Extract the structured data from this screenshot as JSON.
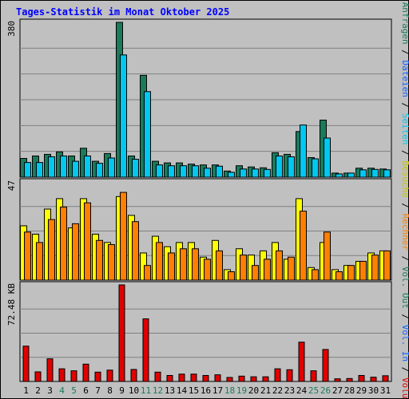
{
  "chart_data": {
    "type": "bar",
    "title": "Tages-Statistik im Monat Oktober 2025",
    "categories": [
      "1",
      "2",
      "3",
      "4",
      "5",
      "6",
      "7",
      "8",
      "9",
      "10",
      "11",
      "12",
      "13",
      "14",
      "15",
      "16",
      "17",
      "18",
      "19",
      "20",
      "21",
      "22",
      "23",
      "24",
      "25",
      "26",
      "27",
      "28",
      "29",
      "30",
      "31"
    ],
    "weekend_days": [
      "4",
      "5",
      "11",
      "12",
      "18",
      "19",
      "25",
      "26"
    ],
    "panels": {
      "top": {
        "ymax_label": "380",
        "ymax": 380,
        "series": [
          {
            "name": "Anfragen",
            "color": "#1b7a5a",
            "values": [
              46,
              52,
              56,
              62,
              52,
              71,
              39,
              58,
              380,
              52,
              250,
              39,
              35,
              35,
              32,
              30,
              30,
              15,
              28,
              25,
              23,
              60,
              56,
              112,
              48,
              140,
              10,
              10,
              22,
              22,
              20
            ]
          },
          {
            "name": "Dateien",
            "color": "#00c8f0",
            "values": [
              36,
              36,
              50,
              52,
              39,
              52,
              34,
              47,
              300,
              44,
              210,
              30,
              28,
              28,
              28,
              22,
              27,
              12,
              20,
              20,
              19,
              52,
              50,
              128,
              45,
              96,
              8,
              10,
              18,
              19,
              18
            ]
          }
        ]
      },
      "middle": {
        "ymax_label": "47",
        "ymax": 47,
        "series": [
          {
            "name": "Besuche",
            "color": "#ffff00",
            "values": [
              26,
              22,
              34,
              39,
              25,
              39,
              22,
              18,
              40,
              31,
              13,
              21,
              16,
              18,
              18,
              11,
              19,
              5,
              15,
              12,
              14,
              18,
              10,
              39,
              6,
              18,
              5,
              7,
              9,
              13,
              14
            ]
          },
          {
            "name": "Rechner",
            "color": "#ff8000",
            "values": [
              23,
              18,
              29,
              35,
              27,
              37,
              19,
              17,
              42,
              28,
              7,
              18,
              13,
              15,
              15,
              10,
              14,
              4,
              12,
              7,
              10,
              14,
              11,
              33,
              5,
              23,
              4,
              7,
              9,
              12,
              14
            ]
          }
        ]
      },
      "bottom": {
        "ymax_label": "72.48 KB",
        "ymax": 72.48,
        "series": [
          {
            "name": "Volumen",
            "color": "#e00000",
            "values": [
              26.5,
              7.2,
              17,
              9.5,
              8,
              13,
              7,
              8.5,
              72.48,
              9,
              47,
              7,
              4.5,
              5.5,
              5.5,
              4.5,
              5,
              3,
              4,
              3.5,
              3.5,
              9.5,
              8.8,
              29.5,
              8,
              24,
              2,
              2.2,
              4.5,
              3.2,
              4.3
            ]
          }
        ]
      }
    },
    "legend": [
      {
        "text": "Anfragen",
        "color": "#1b7a5a"
      },
      {
        "text": " / ",
        "color": "#000000"
      },
      {
        "text": "Dateien",
        "color": "#1060ff"
      },
      {
        "text": " / ",
        "color": "#000000"
      },
      {
        "text": "Seiten",
        "color": "#00c8f0"
      },
      {
        "text": " / ",
        "color": "#000000"
      },
      {
        "text": "Besuche",
        "color": "#c8c800"
      },
      {
        "text": " / ",
        "color": "#000000"
      },
      {
        "text": "Rechner",
        "color": "#ff8000"
      },
      {
        "text": " / ",
        "color": "#000000"
      },
      {
        "text": "Vol. Out",
        "color": "#1b7a5a"
      },
      {
        "text": " / ",
        "color": "#000000"
      },
      {
        "text": "Vol. In",
        "color": "#1060ff"
      },
      {
        "text": " / ",
        "color": "#000000"
      },
      {
        "text": "Volumen",
        "color": "#e00000"
      }
    ],
    "colors": {
      "background": "#c0c0c0",
      "title": "#0000ff",
      "weekday_label": "#000000",
      "weekend_label": "#1b7a5a",
      "gridline": "#808080"
    }
  }
}
